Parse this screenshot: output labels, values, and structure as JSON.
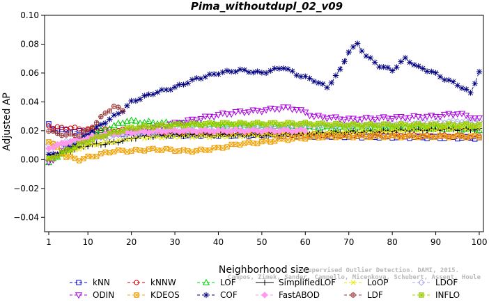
{
  "chart_data": {
    "type": "line",
    "title": "Pima_withoutdupl_02_v09",
    "xlabel": "Neighborhood size",
    "ylabel": "Adjusted AP",
    "xlim": [
      1,
      100
    ],
    "ylim": [
      -0.05,
      0.1
    ],
    "x_ticks": [
      1,
      10,
      20,
      30,
      40,
      50,
      60,
      70,
      80,
      90,
      100
    ],
    "y_ticks": [
      -0.04,
      -0.02,
      0.0,
      0.02,
      0.04,
      0.06,
      0.08,
      0.1
    ],
    "y_tick_labels": [
      "−0.04",
      "−0.02",
      "0.00",
      "0.02",
      "0.04",
      "0.06",
      "0.08",
      "0.10"
    ],
    "grid": false,
    "legend_position": "bottom",
    "series": [
      {
        "name": "kNN",
        "color": "#0000cc",
        "marker": "square",
        "dash": "4,3",
        "keypoints": [
          [
            1,
            0.024
          ],
          [
            2,
            0.021
          ],
          [
            5,
            0.02
          ],
          [
            10,
            0.019
          ],
          [
            20,
            0.018
          ],
          [
            30,
            0.017
          ],
          [
            50,
            0.017
          ],
          [
            70,
            0.016
          ],
          [
            100,
            0.015
          ]
        ]
      },
      {
        "name": "kNNW",
        "color": "#cc0000",
        "marker": "circle",
        "dash": "4,3",
        "keypoints": [
          [
            1,
            0.024
          ],
          [
            2,
            0.022
          ],
          [
            5,
            0.022
          ],
          [
            10,
            0.021
          ],
          [
            20,
            0.02
          ],
          [
            30,
            0.019
          ],
          [
            50,
            0.018
          ],
          [
            70,
            0.017
          ],
          [
            100,
            0.016
          ]
        ]
      },
      {
        "name": "LOF",
        "color": "#00cc00",
        "marker": "triangle",
        "dash": "4,3",
        "keypoints": [
          [
            1,
            -0.002
          ],
          [
            3,
            0.002
          ],
          [
            6,
            0.01
          ],
          [
            10,
            0.016
          ],
          [
            15,
            0.022
          ],
          [
            19,
            0.027
          ],
          [
            22,
            0.026
          ],
          [
            30,
            0.025
          ],
          [
            40,
            0.024
          ],
          [
            50,
            0.023
          ],
          [
            70,
            0.022
          ],
          [
            85,
            0.022
          ],
          [
            100,
            0.021
          ]
        ]
      },
      {
        "name": "SimplifiedLOF",
        "color": "#000000",
        "marker": "plus",
        "dash": "none",
        "keypoints": [
          [
            1,
            0.003
          ],
          [
            3,
            0.003
          ],
          [
            6,
            0.006
          ],
          [
            10,
            0.01
          ],
          [
            14,
            0.011
          ],
          [
            18,
            0.013
          ],
          [
            22,
            0.016
          ],
          [
            30,
            0.017
          ],
          [
            40,
            0.017
          ],
          [
            50,
            0.017
          ],
          [
            60,
            0.018
          ],
          [
            70,
            0.019
          ],
          [
            80,
            0.02
          ],
          [
            90,
            0.021
          ],
          [
            100,
            0.021
          ]
        ]
      },
      {
        "name": "LoOP",
        "color": "#e6e600",
        "marker": "x",
        "dash": "4,3",
        "keypoints": [
          [
            1,
            0.002
          ],
          [
            5,
            0.004
          ],
          [
            10,
            0.01
          ],
          [
            15,
            0.012
          ],
          [
            20,
            0.015
          ],
          [
            30,
            0.016
          ],
          [
            40,
            0.016
          ],
          [
            50,
            0.017
          ],
          [
            60,
            0.018
          ],
          [
            70,
            0.019
          ],
          [
            80,
            0.02
          ],
          [
            90,
            0.021
          ],
          [
            100,
            0.022
          ]
        ]
      },
      {
        "name": "LDOF",
        "color": "#aaaaee",
        "marker": "diamond",
        "dash": "4,3",
        "keypoints": [
          [
            1,
            0.01
          ],
          [
            5,
            0.012
          ],
          [
            10,
            0.014
          ],
          [
            20,
            0.018
          ],
          [
            30,
            0.02
          ],
          [
            40,
            0.021
          ],
          [
            50,
            0.022
          ],
          [
            60,
            0.023
          ],
          [
            70,
            0.024
          ],
          [
            80,
            0.025
          ],
          [
            90,
            0.026
          ],
          [
            100,
            0.027
          ]
        ]
      },
      {
        "name": "ODIN",
        "color": "#aa00dd",
        "marker": "triangle-down",
        "dash": "4,3",
        "keypoints": [
          [
            1,
            -0.002
          ],
          [
            5,
            0.008
          ],
          [
            10,
            0.014
          ],
          [
            15,
            0.018
          ],
          [
            20,
            0.02
          ],
          [
            25,
            0.022
          ],
          [
            30,
            0.025
          ],
          [
            35,
            0.028
          ],
          [
            40,
            0.031
          ],
          [
            45,
            0.033
          ],
          [
            50,
            0.034
          ],
          [
            55,
            0.036
          ],
          [
            58,
            0.035
          ],
          [
            62,
            0.03
          ],
          [
            70,
            0.028
          ],
          [
            80,
            0.029
          ],
          [
            90,
            0.03
          ],
          [
            95,
            0.032
          ],
          [
            100,
            0.028
          ]
        ]
      },
      {
        "name": "KDEOS",
        "color": "#f0a000",
        "marker": "square-x",
        "dash": "4,3",
        "keypoints": [
          [
            1,
            0.013
          ],
          [
            3,
            0.008
          ],
          [
            5,
            0.002
          ],
          [
            8,
            0.0
          ],
          [
            12,
            0.003
          ],
          [
            16,
            0.006
          ],
          [
            20,
            0.006
          ],
          [
            24,
            0.007
          ],
          [
            28,
            0.007
          ],
          [
            32,
            0.006
          ],
          [
            35,
            0.006
          ],
          [
            40,
            0.008
          ],
          [
            45,
            0.011
          ],
          [
            50,
            0.012
          ],
          [
            55,
            0.014
          ],
          [
            60,
            0.015
          ],
          [
            65,
            0.016
          ],
          [
            70,
            0.016
          ],
          [
            80,
            0.016
          ],
          [
            90,
            0.016
          ],
          [
            100,
            0.016
          ]
        ]
      },
      {
        "name": "COF",
        "color": "#000080",
        "marker": "asterisk",
        "dash": "4,3",
        "keypoints": [
          [
            1,
            0.003
          ],
          [
            5,
            0.006
          ],
          [
            10,
            0.018
          ],
          [
            14,
            0.026
          ],
          [
            18,
            0.034
          ],
          [
            20,
            0.04
          ],
          [
            25,
            0.046
          ],
          [
            30,
            0.05
          ],
          [
            35,
            0.056
          ],
          [
            40,
            0.06
          ],
          [
            45,
            0.062
          ],
          [
            50,
            0.06
          ],
          [
            55,
            0.064
          ],
          [
            58,
            0.059
          ],
          [
            62,
            0.055
          ],
          [
            65,
            0.05
          ],
          [
            68,
            0.062
          ],
          [
            70,
            0.075
          ],
          [
            72,
            0.08
          ],
          [
            74,
            0.072
          ],
          [
            77,
            0.065
          ],
          [
            80,
            0.062
          ],
          [
            83,
            0.07
          ],
          [
            86,
            0.064
          ],
          [
            89,
            0.061
          ],
          [
            92,
            0.056
          ],
          [
            95,
            0.052
          ],
          [
            98,
            0.046
          ],
          [
            100,
            0.061
          ]
        ]
      },
      {
        "name": "FastABOD",
        "color": "#ff99ee",
        "marker": "diamond-filled",
        "dash": "4,3",
        "keypoints": [
          [
            1,
            0.008
          ],
          [
            5,
            0.012
          ],
          [
            10,
            0.015
          ],
          [
            15,
            0.018
          ],
          [
            20,
            0.019
          ],
          [
            30,
            0.02
          ],
          [
            40,
            0.02
          ],
          [
            50,
            0.02
          ],
          [
            60,
            0.02
          ]
        ]
      },
      {
        "name": "LDF",
        "color": "#993333",
        "marker": "circle-plus",
        "dash": "4,3",
        "keypoints": [
          [
            1,
            0.02
          ],
          [
            3,
            0.018
          ],
          [
            5,
            0.017
          ],
          [
            8,
            0.017
          ],
          [
            10,
            0.02
          ],
          [
            12,
            0.026
          ],
          [
            14,
            0.032
          ],
          [
            16,
            0.037
          ],
          [
            18,
            0.034
          ]
        ]
      },
      {
        "name": "INFLO",
        "color": "#99cc00",
        "marker": "square-star",
        "dash": "4,3",
        "keypoints": [
          [
            1,
            0.0
          ],
          [
            5,
            0.006
          ],
          [
            10,
            0.013
          ],
          [
            15,
            0.018
          ],
          [
            20,
            0.022
          ],
          [
            30,
            0.024
          ],
          [
            40,
            0.025
          ],
          [
            50,
            0.025
          ],
          [
            60,
            0.025
          ],
          [
            70,
            0.024
          ],
          [
            80,
            0.024
          ],
          [
            90,
            0.024
          ],
          [
            100,
            0.024
          ]
        ]
      }
    ],
    "watermark_lines": [
      "Unsupervised Outlier Detection. DAMI, 2015.",
      "Campos, Zimek, Sander, Campello, Micenkova, Schubert, Assent, Houle"
    ]
  }
}
